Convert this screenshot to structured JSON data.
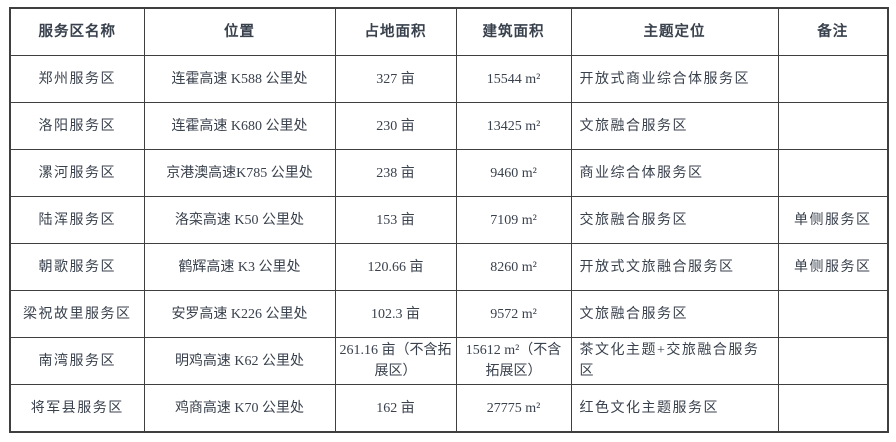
{
  "colors": {
    "background": "#ffffff",
    "text": "#39414d",
    "border": "#3f3f3f"
  },
  "table": {
    "column_keys": [
      "name",
      "location",
      "land_area",
      "building_area",
      "theme",
      "remark"
    ],
    "headers": [
      "服务区名称",
      "位置",
      "占地面积",
      "建筑面积",
      "主题定位",
      "备注"
    ],
    "rows": [
      {
        "name": "郑州服务区",
        "location": "连霍高速 K588 公里处",
        "land_area": "327 亩",
        "building_area": "15544 m²",
        "theme": "开放式商业综合体服务区",
        "remark": ""
      },
      {
        "name": "洛阳服务区",
        "location": "连霍高速 K680 公里处",
        "land_area": "230 亩",
        "building_area": "13425 m²",
        "theme": "文旅融合服务区",
        "remark": ""
      },
      {
        "name": "漯河服务区",
        "location": "京港澳高速K785 公里处",
        "land_area": "238 亩",
        "building_area": "9460 m²",
        "theme": "商业综合体服务区",
        "remark": ""
      },
      {
        "name": "陆浑服务区",
        "location": "洛栾高速 K50 公里处",
        "land_area": "153 亩",
        "building_area": "7109 m²",
        "theme": "交旅融合服务区",
        "remark": "单侧服务区"
      },
      {
        "name": "朝歌服务区",
        "location": "鹤辉高速 K3 公里处",
        "land_area": "120.66 亩",
        "building_area": "8260 m²",
        "theme": "开放式文旅融合服务区",
        "remark": "单侧服务区"
      },
      {
        "name": "梁祝故里服务区",
        "location": "安罗高速 K226 公里处",
        "land_area": "102.3 亩",
        "building_area": "9572 m²",
        "theme": "文旅融合服务区",
        "remark": ""
      },
      {
        "name": "南湾服务区",
        "location": "明鸡高速 K62 公里处",
        "land_area": "261.16 亩（不含拓展区）",
        "building_area": "15612 m²（不含拓展区）",
        "theme": "茶文化主题+交旅融合服务区",
        "remark": ""
      },
      {
        "name": "将军县服务区",
        "location": "鸡商高速 K70 公里处",
        "land_area": "162 亩",
        "building_area": "27775 m²",
        "theme": "红色文化主题服务区",
        "remark": ""
      }
    ]
  }
}
